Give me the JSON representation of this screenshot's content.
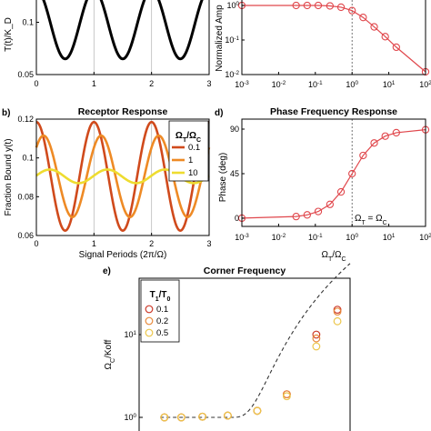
{
  "chart_data": [
    {
      "panel": "a",
      "type": "line",
      "ylabel": "T(t)/K_D",
      "ylim": [
        0.05,
        0.13
      ],
      "xlim": [
        0,
        3
      ],
      "xticks": [
        "0",
        "1",
        "2",
        "3"
      ],
      "yticks": [
        "0.05",
        "0.1"
      ],
      "grid": "vertical dotted lines at x = 1 and x = 2",
      "series": [
        {
          "color": "#000000",
          "mean": 0.098,
          "amplitude": 0.033,
          "period": 1
        }
      ]
    },
    {
      "panel": "top-right",
      "type": "line",
      "ylabel": "Normalized Amp",
      "yscale": "log",
      "xscale": "log",
      "xlim": [
        0.001,
        100
      ],
      "ylim": [
        0.01,
        1.5
      ],
      "xticks": [
        {
          "base": "10",
          "exp": "-3"
        },
        {
          "base": "10",
          "exp": "-2"
        },
        {
          "base": "10",
          "exp": "-1"
        },
        {
          "base": "10",
          "exp": "0"
        },
        {
          "base": "10",
          "exp": "1"
        },
        {
          "base": "10",
          "exp": "2"
        }
      ],
      "yticks": [
        {
          "base": "10",
          "exp": "-2"
        },
        {
          "base": "10",
          "exp": "-1"
        },
        {
          "base": "10",
          "exp": "0"
        }
      ],
      "vline": 1,
      "points": [
        {
          "x": 0.001,
          "y": 1.0
        },
        {
          "x": 0.03,
          "y": 1.0
        },
        {
          "x": 0.06,
          "y": 1.0
        },
        {
          "x": 0.12,
          "y": 1.0
        },
        {
          "x": 0.25,
          "y": 0.97
        },
        {
          "x": 0.5,
          "y": 0.89
        },
        {
          "x": 1,
          "y": 0.71
        },
        {
          "x": 2,
          "y": 0.45
        },
        {
          "x": 4,
          "y": 0.24
        },
        {
          "x": 8,
          "y": 0.125
        },
        {
          "x": 16,
          "y": 0.062
        },
        {
          "x": 100,
          "y": 0.012
        }
      ],
      "color": "#e0474c"
    },
    {
      "panel": "b",
      "type": "line",
      "title": "Receptor Response",
      "xlabel": "Signal Periods (2π/Ω)",
      "ylabel": "Fraction Bound y(t)",
      "xlim": [
        0,
        3
      ],
      "ylim": [
        0.06,
        0.12
      ],
      "xticks": [
        "0",
        "1",
        "2",
        "3"
      ],
      "yticks": [
        "0.06",
        "0.08",
        "0.1",
        "0.12"
      ],
      "legend": {
        "placement": "top-right",
        "title": {
          "main": "Ω",
          "sub1": "T",
          "mid": "/Ω",
          "sub2": "C"
        },
        "entries": [
          "0.1",
          "1",
          "10"
        ]
      },
      "series": [
        {
          "name": "0.1",
          "color": "#d04a1c",
          "mean": 0.0905,
          "amplitude": 0.028,
          "phase_deg": 0
        },
        {
          "name": "1",
          "color": "#ee8a25",
          "mean": 0.0905,
          "amplitude": 0.021,
          "phase_deg": 45
        },
        {
          "name": "10",
          "color": "#eedc30",
          "mean": 0.0905,
          "amplitude": 0.0035,
          "phase_deg": 84
        }
      ]
    },
    {
      "panel": "d",
      "type": "line",
      "title": "Phase Frequency Response",
      "xlabel": {
        "main": "Ω",
        "sub1": "T",
        "mid": "/Ω",
        "sub2": "C"
      },
      "ylabel": "Phase (deg)",
      "xscale": "log",
      "xlim": [
        0.001,
        100
      ],
      "ylim": [
        -5,
        95
      ],
      "xticks": [
        {
          "base": "10",
          "exp": "-3"
        },
        {
          "base": "10",
          "exp": "-2"
        },
        {
          "base": "10",
          "exp": "-1"
        },
        {
          "base": "10",
          "exp": "0"
        },
        {
          "base": "10",
          "exp": "1"
        },
        {
          "base": "10",
          "exp": "2"
        }
      ],
      "yticks": [
        "0",
        "45",
        "90"
      ],
      "vline": 1,
      "annotation": {
        "a": "Ω",
        "a_sub": "T",
        "eq": " = Ω",
        "b_sub": "C"
      },
      "points": [
        {
          "x": 0.001,
          "y": 0.1
        },
        {
          "x": 0.03,
          "y": 1.7
        },
        {
          "x": 0.06,
          "y": 3.4
        },
        {
          "x": 0.12,
          "y": 6.8
        },
        {
          "x": 0.25,
          "y": 14
        },
        {
          "x": 0.5,
          "y": 26.6
        },
        {
          "x": 1,
          "y": 45
        },
        {
          "x": 2,
          "y": 63.4
        },
        {
          "x": 4,
          "y": 76
        },
        {
          "x": 8,
          "y": 82.9
        },
        {
          "x": 16,
          "y": 86.4
        },
        {
          "x": 100,
          "y": 89.4
        }
      ],
      "color": "#e0474c"
    },
    {
      "panel": "e",
      "type": "scatter",
      "title": "Corner Frequency",
      "ylabel": {
        "main": "Ω",
        "sub": "C",
        "rest": "/Koff"
      },
      "yscale": "log",
      "yticks": [
        {
          "base": "10",
          "exp": "0"
        },
        {
          "base": "10",
          "exp": "1"
        }
      ],
      "ylim": [
        0.9,
        50
      ],
      "legend": {
        "placement": "top-left",
        "title": {
          "main": "T",
          "sub1": "1",
          "mid": "/T",
          "sub2": "0"
        },
        "entries": [
          "0.1",
          "0.2",
          "0.5"
        ]
      },
      "fit_line": "dashed",
      "series": [
        {
          "name": "0.1",
          "color": "#cc3a2a",
          "points": [
            [
              0.12,
              1.0
            ],
            [
              0.2,
              1.0
            ],
            [
              0.3,
              1.02
            ],
            [
              0.42,
              1.05
            ],
            [
              0.56,
              1.2
            ],
            [
              0.7,
              1.9
            ],
            [
              0.84,
              10
            ],
            [
              0.94,
              20
            ]
          ]
        },
        {
          "name": "0.2",
          "color": "#e88a3c",
          "points": [
            [
              0.12,
              1.0
            ],
            [
              0.2,
              1.0
            ],
            [
              0.3,
              1.02
            ],
            [
              0.42,
              1.05
            ],
            [
              0.56,
              1.2
            ],
            [
              0.7,
              1.9
            ],
            [
              0.84,
              9
            ],
            [
              0.94,
              19
            ]
          ]
        },
        {
          "name": "0.5",
          "color": "#ecc64a",
          "points": [
            [
              0.12,
              1.0
            ],
            [
              0.2,
              1.0
            ],
            [
              0.3,
              1.02
            ],
            [
              0.42,
              1.05
            ],
            [
              0.56,
              1.2
            ],
            [
              0.7,
              1.8
            ],
            [
              0.84,
              7.2
            ],
            [
              0.94,
              14.5
            ]
          ]
        }
      ]
    }
  ],
  "labels": {
    "b": "b)",
    "d": "d)",
    "e": "e)"
  }
}
